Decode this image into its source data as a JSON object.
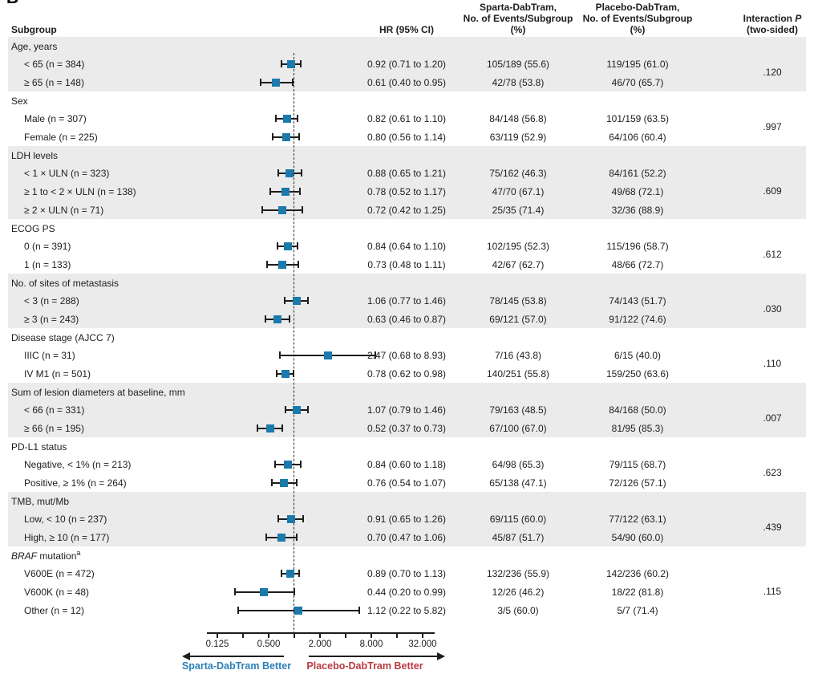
{
  "panel_label": "B",
  "columns": {
    "subgroup": "Subgroup",
    "hr": "HR (95% CI)",
    "sparta_l1": "Sparta-DabTram,",
    "sparta_l2": "No. of Events/Subgroup",
    "sparta_l3": "(%)",
    "placebo_l1": "Placebo-DabTram,",
    "placebo_l2": "No. of Events/Subgroup",
    "placebo_l3": "(%)",
    "interaction_l1a": "Interaction ",
    "interaction_l1b": "P",
    "interaction_l2": "(two-sided)"
  },
  "colors": {
    "marker_blue": "#1b7aab",
    "shade_gray": "#ebebeb",
    "sparta_better_blue": "#2c80b8",
    "placebo_better_red": "#bb3a41",
    "line_black": "#1d1d1d"
  },
  "chart_data": {
    "type": "forest",
    "x_axis": {
      "scale": "log2",
      "ref_line": 1.0,
      "ticks": [
        {
          "v": 0.125,
          "label": "0.125"
        },
        {
          "v": 0.25,
          "label": null
        },
        {
          "v": 0.5,
          "label": "0.500"
        },
        {
          "v": 1,
          "label": null
        },
        {
          "v": 2,
          "label": "2.000"
        },
        {
          "v": 4,
          "label": null
        },
        {
          "v": 8,
          "label": "8.000"
        },
        {
          "v": 16,
          "label": null
        },
        {
          "v": 32,
          "label": "32.000"
        }
      ]
    },
    "direction_labels": {
      "left": "Sparta-DabTram Better",
      "right": "Placebo-DabTram Better"
    },
    "groups": [
      {
        "label": "Age, years",
        "shaded": true,
        "interaction_p": ".120",
        "rows": [
          {
            "label": "< 65 (n = 384)",
            "hr": 0.92,
            "lo": 0.71,
            "hi": 1.2,
            "hr_text": "0.92 (0.71 to 1.20)",
            "sparta": "105/189 (55.6)",
            "placebo": "119/195 (61.0)"
          },
          {
            "label": "≥ 65 (n = 148)",
            "hr": 0.61,
            "lo": 0.4,
            "hi": 0.95,
            "hr_text": "0.61 (0.40 to 0.95)",
            "sparta": "42/78 (53.8)",
            "placebo": "46/70 (65.7)"
          }
        ]
      },
      {
        "label": "Sex",
        "shaded": false,
        "interaction_p": ".997",
        "rows": [
          {
            "label": "Male (n = 307)",
            "hr": 0.82,
            "lo": 0.61,
            "hi": 1.1,
            "hr_text": "0.82 (0.61 to 1.10)",
            "sparta": "84/148 (56.8)",
            "placebo": "101/159 (63.5)"
          },
          {
            "label": "Female (n = 225)",
            "hr": 0.8,
            "lo": 0.56,
            "hi": 1.14,
            "hr_text": "0.80 (0.56 to 1.14)",
            "sparta": "63/119 (52.9)",
            "placebo": "64/106 (60.4)"
          }
        ]
      },
      {
        "label": "LDH levels",
        "shaded": true,
        "interaction_p": ".609",
        "rows": [
          {
            "label": "< 1 × ULN (n = 323)",
            "hr": 0.88,
            "lo": 0.65,
            "hi": 1.21,
            "hr_text": "0.88 (0.65 to 1.21)",
            "sparta": "75/162 (46.3)",
            "placebo": "84/161 (52.2)"
          },
          {
            "label": "≥ 1 to < 2 × ULN (n = 138)",
            "hr": 0.78,
            "lo": 0.52,
            "hi": 1.17,
            "hr_text": "0.78 (0.52 to 1.17)",
            "sparta": "47/70 (67.1)",
            "placebo": "49/68 (72.1)"
          },
          {
            "label": "≥ 2 × ULN (n = 71)",
            "hr": 0.72,
            "lo": 0.42,
            "hi": 1.25,
            "hr_text": "0.72 (0.42 to 1.25)",
            "sparta": "25/35 (71.4)",
            "placebo": "32/36 (88.9)"
          }
        ]
      },
      {
        "label": "ECOG PS",
        "shaded": false,
        "interaction_p": ".612",
        "rows": [
          {
            "label": "0 (n = 391)",
            "hr": 0.84,
            "lo": 0.64,
            "hi": 1.1,
            "hr_text": "0.84 (0.64 to 1.10)",
            "sparta": "102/195 (52.3)",
            "placebo": "115/196 (58.7)"
          },
          {
            "label": "1 (n = 133)",
            "hr": 0.73,
            "lo": 0.48,
            "hi": 1.11,
            "hr_text": "0.73 (0.48 to 1.11)",
            "sparta": "42/67 (62.7)",
            "placebo": "48/66 (72.7)"
          }
        ]
      },
      {
        "label": "No. of sites of metastasis",
        "shaded": true,
        "interaction_p": ".030",
        "rows": [
          {
            "label": "< 3 (n = 288)",
            "hr": 1.06,
            "lo": 0.77,
            "hi": 1.46,
            "hr_text": "1.06 (0.77 to 1.46)",
            "sparta": "78/145 (53.8)",
            "placebo": "74/143 (51.7)"
          },
          {
            "label": "≥ 3 (n = 243)",
            "hr": 0.63,
            "lo": 0.46,
            "hi": 0.87,
            "hr_text": "0.63 (0.46 to 0.87)",
            "sparta": "69/121 (57.0)",
            "placebo": "91/122 (74.6)"
          }
        ]
      },
      {
        "label": "Disease stage (AJCC 7)",
        "shaded": false,
        "interaction_p": ".110",
        "rows": [
          {
            "label": "IIIC (n = 31)",
            "hr": 2.47,
            "lo": 0.68,
            "hi": 8.93,
            "hr_text": "2.47 (0.68 to 8.93)",
            "sparta": "7/16 (43.8)",
            "placebo": "6/15 (40.0)"
          },
          {
            "label": "IV M1 (n = 501)",
            "hr": 0.78,
            "lo": 0.62,
            "hi": 0.98,
            "hr_text": "0.78 (0.62 to 0.98)",
            "sparta": "140/251 (55.8)",
            "placebo": "159/250 (63.6)"
          }
        ]
      },
      {
        "label": "Sum of lesion diameters at baseline, mm",
        "shaded": true,
        "interaction_p": ".007",
        "rows": [
          {
            "label": "< 66 (n = 331)",
            "hr": 1.07,
            "lo": 0.79,
            "hi": 1.46,
            "hr_text": "1.07 (0.79 to 1.46)",
            "sparta": "79/163 (48.5)",
            "placebo": "84/168 (50.0)"
          },
          {
            "label": "≥ 66 (n = 195)",
            "hr": 0.52,
            "lo": 0.37,
            "hi": 0.73,
            "hr_text": "0.52 (0.37 to 0.73)",
            "sparta": "67/100 (67.0)",
            "placebo": "81/95 (85.3)"
          }
        ]
      },
      {
        "label": "PD-L1 status",
        "shaded": false,
        "interaction_p": ".623",
        "rows": [
          {
            "label": "Negative, < 1% (n = 213)",
            "hr": 0.84,
            "lo": 0.6,
            "hi": 1.18,
            "hr_text": "0.84 (0.60 to 1.18)",
            "sparta": "64/98 (65.3)",
            "placebo": "79/115 (68.7)"
          },
          {
            "label": "Positive, ≥ 1% (n = 264)",
            "hr": 0.76,
            "lo": 0.54,
            "hi": 1.07,
            "hr_text": "0.76 (0.54 to 1.07)",
            "sparta": "65/138 (47.1)",
            "placebo": "72/126 (57.1)"
          }
        ]
      },
      {
        "label": "TMB, mut/Mb",
        "shaded": true,
        "interaction_p": ".439",
        "rows": [
          {
            "label": "Low, < 10 (n = 237)",
            "hr": 0.91,
            "lo": 0.65,
            "hi": 1.26,
            "hr_text": "0.91 (0.65 to 1.26)",
            "sparta": "69/115 (60.0)",
            "placebo": "77/122 (63.1)"
          },
          {
            "label": "High, ≥ 10 (n = 177)",
            "hr": 0.7,
            "lo": 0.47,
            "hi": 1.06,
            "hr_text": "0.70 (0.47 to 1.06)",
            "sparta": "45/87 (51.7)",
            "placebo": "54/90 (60.0)"
          }
        ]
      },
      {
        "label": " mutation",
        "label_italic": "BRAF",
        "label_sup": "a",
        "shaded": false,
        "interaction_p": ".115",
        "rows": [
          {
            "label": "V600E (n = 472)",
            "hr": 0.89,
            "lo": 0.7,
            "hi": 1.13,
            "hr_text": "0.89 (0.70 to 1.13)",
            "sparta": "132/236 (55.9)",
            "placebo": "142/236 (60.2)"
          },
          {
            "label": "V600K (n = 48)",
            "hr": 0.44,
            "lo": 0.2,
            "hi": 0.99,
            "hr_text": "0.44 (0.20 to 0.99)",
            "sparta": "12/26 (46.2)",
            "placebo": "18/22 (81.8)"
          },
          {
            "label": "Other (n = 12)",
            "hr": 1.12,
            "lo": 0.22,
            "hi": 5.82,
            "hr_text": "1.12 (0.22 to 5.82)",
            "sparta": "3/5 (60.0)",
            "placebo": "5/7 (71.4)"
          }
        ]
      }
    ]
  }
}
